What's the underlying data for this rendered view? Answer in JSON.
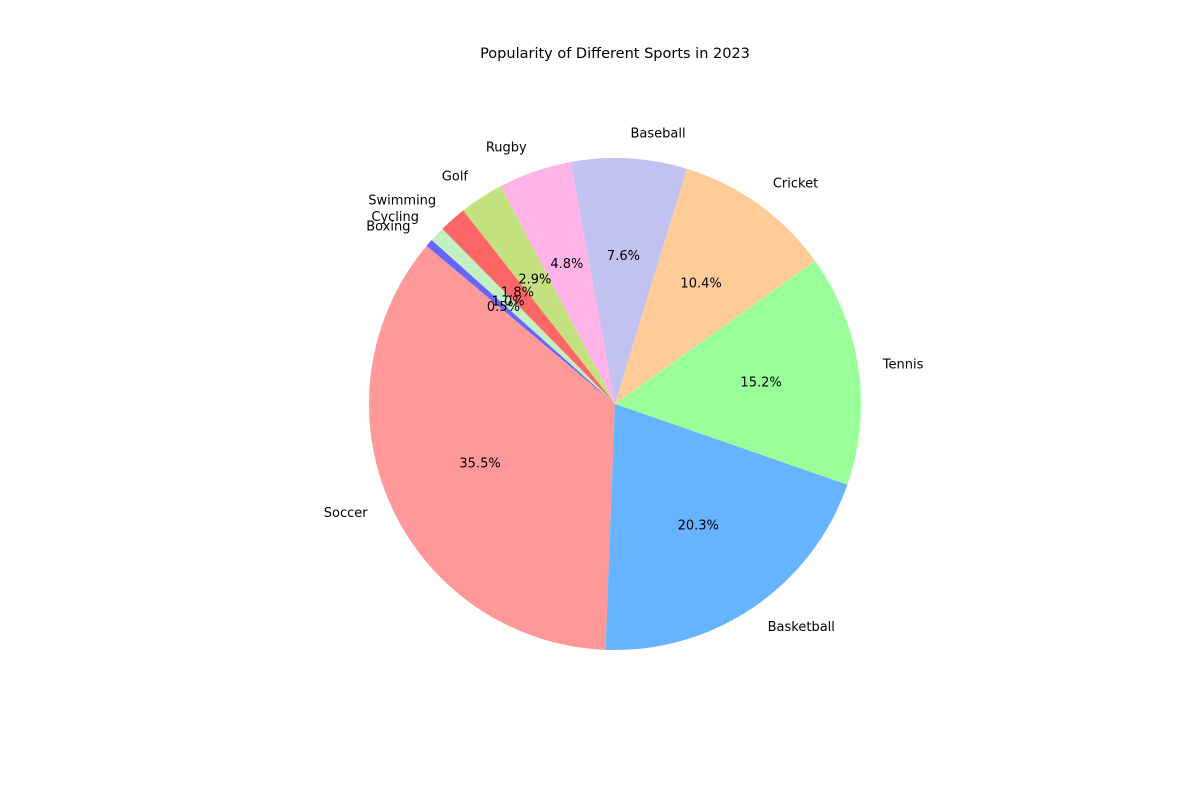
{
  "chart_data": {
    "type": "pie",
    "title": "Popularity of Different Sports in 2023",
    "start_angle_deg": 140,
    "direction": "counterclockwise",
    "legend": "none",
    "slices": [
      {
        "label": "Soccer",
        "value": 35.5,
        "pct_label": "35.5%",
        "color": "#ff9999"
      },
      {
        "label": "Basketball",
        "value": 20.3,
        "pct_label": "20.3%",
        "color": "#66b3ff"
      },
      {
        "label": "Tennis",
        "value": 15.2,
        "pct_label": "15.2%",
        "color": "#99ff99"
      },
      {
        "label": "Cricket",
        "value": 10.4,
        "pct_label": "10.4%",
        "color": "#ffcc99"
      },
      {
        "label": "Baseball",
        "value": 7.6,
        "pct_label": "7.6%",
        "color": "#c2c2f0"
      },
      {
        "label": "Rugby",
        "value": 4.8,
        "pct_label": "4.8%",
        "color": "#ffb3e6"
      },
      {
        "label": "Golf",
        "value": 2.9,
        "pct_label": "2.9%",
        "color": "#c4e17f"
      },
      {
        "label": "Swimming",
        "value": 1.8,
        "pct_label": "1.8%",
        "color": "#ff6666"
      },
      {
        "label": "Cycling",
        "value": 1.0,
        "pct_label": "1.0%",
        "color": "#c2f0c2"
      },
      {
        "label": "Boxing",
        "value": 0.5,
        "pct_label": "0.5%",
        "color": "#6666ff"
      }
    ]
  }
}
